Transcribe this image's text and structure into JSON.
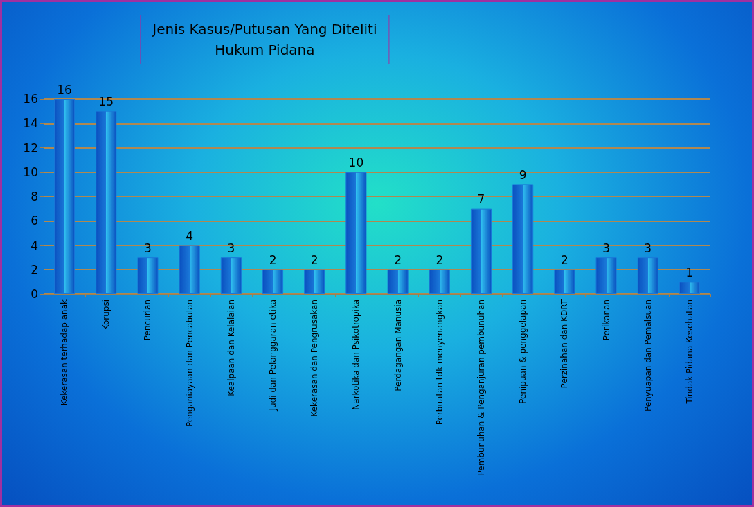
{
  "chart_data": {
    "type": "bar",
    "title": "Jenis Kasus/Putusan Yang Diteliti\nHukum Pidana",
    "categories": [
      "Kekerasan terhadap anak",
      "Korupsi",
      "Pencurian",
      "Penganiayaan dan Pencabulan",
      "Kealpaan dan Kelalaian",
      "Judi dan Pelanggaran etika",
      "Kekerasan dan Pengrusakan",
      "Narkotika dan Psikotropika",
      "Perdagangan Manusia",
      "Perbuatan tdk menyenangkan",
      "Pembunuhan & Penganjuran pembunuhan",
      "Penipuan & penggelapan",
      "Perzinahan dan KDRT",
      "Perikanan",
      "Penyuapan dan Pemalsuan",
      "Tindak Pidana Kesehatan"
    ],
    "values": [
      16,
      15,
      3,
      4,
      3,
      2,
      2,
      10,
      2,
      2,
      7,
      9,
      2,
      3,
      3,
      1
    ],
    "color": "#1a78d8",
    "ylim": [
      0,
      16
    ],
    "yticks": [
      0,
      2,
      4,
      6,
      8,
      10,
      12,
      14,
      16
    ],
    "grid": "y",
    "data_labels": true
  }
}
